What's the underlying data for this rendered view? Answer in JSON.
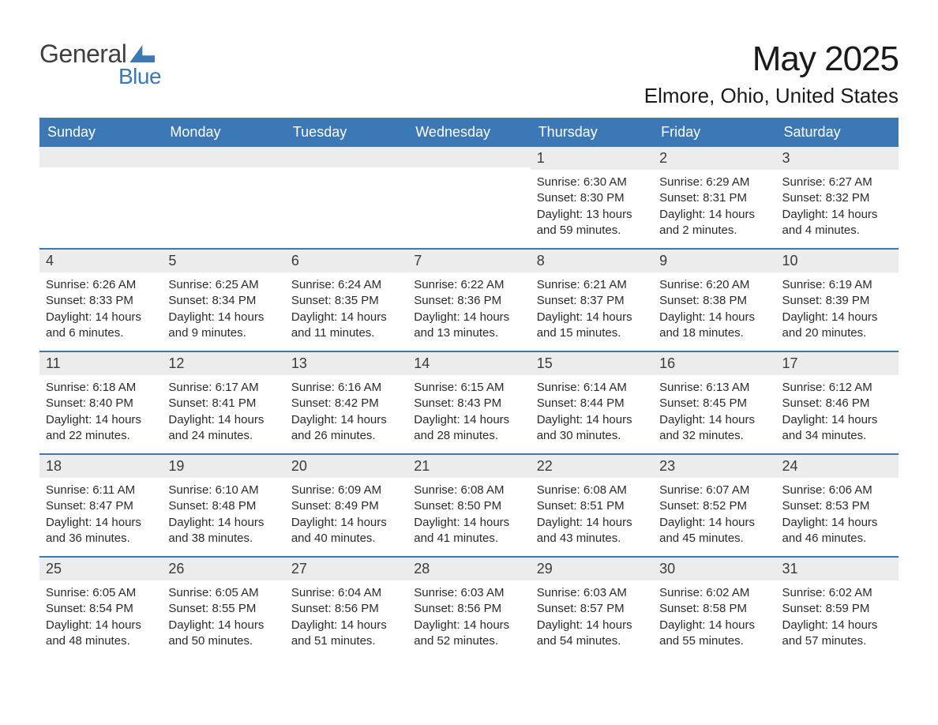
{
  "brand": {
    "part1": "General",
    "part2": "Blue",
    "text_color": "#404040",
    "accent_color": "#3b78b5"
  },
  "title": {
    "month": "May 2025",
    "location": "Elmore, Ohio, United States"
  },
  "colors": {
    "header_bg": "#3b78b5",
    "header_text": "#ffffff",
    "daynum_bg": "#ececec",
    "week_divider": "#3b78b5",
    "body_text": "#2a2a2a",
    "page_bg": "#ffffff"
  },
  "fonts": {
    "title_size": 44,
    "location_size": 26,
    "weekday_size": 18,
    "daynum_size": 18,
    "body_size": 15
  },
  "weekdays": [
    "Sunday",
    "Monday",
    "Tuesday",
    "Wednesday",
    "Thursday",
    "Friday",
    "Saturday"
  ],
  "weeks": [
    [
      {
        "empty": true
      },
      {
        "empty": true
      },
      {
        "empty": true
      },
      {
        "empty": true
      },
      {
        "n": "1",
        "sunrise": "6:30 AM",
        "sunset": "8:30 PM",
        "daylight": "13 hours and 59 minutes."
      },
      {
        "n": "2",
        "sunrise": "6:29 AM",
        "sunset": "8:31 PM",
        "daylight": "14 hours and 2 minutes."
      },
      {
        "n": "3",
        "sunrise": "6:27 AM",
        "sunset": "8:32 PM",
        "daylight": "14 hours and 4 minutes."
      }
    ],
    [
      {
        "n": "4",
        "sunrise": "6:26 AM",
        "sunset": "8:33 PM",
        "daylight": "14 hours and 6 minutes."
      },
      {
        "n": "5",
        "sunrise": "6:25 AM",
        "sunset": "8:34 PM",
        "daylight": "14 hours and 9 minutes."
      },
      {
        "n": "6",
        "sunrise": "6:24 AM",
        "sunset": "8:35 PM",
        "daylight": "14 hours and 11 minutes."
      },
      {
        "n": "7",
        "sunrise": "6:22 AM",
        "sunset": "8:36 PM",
        "daylight": "14 hours and 13 minutes."
      },
      {
        "n": "8",
        "sunrise": "6:21 AM",
        "sunset": "8:37 PM",
        "daylight": "14 hours and 15 minutes."
      },
      {
        "n": "9",
        "sunrise": "6:20 AM",
        "sunset": "8:38 PM",
        "daylight": "14 hours and 18 minutes."
      },
      {
        "n": "10",
        "sunrise": "6:19 AM",
        "sunset": "8:39 PM",
        "daylight": "14 hours and 20 minutes."
      }
    ],
    [
      {
        "n": "11",
        "sunrise": "6:18 AM",
        "sunset": "8:40 PM",
        "daylight": "14 hours and 22 minutes."
      },
      {
        "n": "12",
        "sunrise": "6:17 AM",
        "sunset": "8:41 PM",
        "daylight": "14 hours and 24 minutes."
      },
      {
        "n": "13",
        "sunrise": "6:16 AM",
        "sunset": "8:42 PM",
        "daylight": "14 hours and 26 minutes."
      },
      {
        "n": "14",
        "sunrise": "6:15 AM",
        "sunset": "8:43 PM",
        "daylight": "14 hours and 28 minutes."
      },
      {
        "n": "15",
        "sunrise": "6:14 AM",
        "sunset": "8:44 PM",
        "daylight": "14 hours and 30 minutes."
      },
      {
        "n": "16",
        "sunrise": "6:13 AM",
        "sunset": "8:45 PM",
        "daylight": "14 hours and 32 minutes."
      },
      {
        "n": "17",
        "sunrise": "6:12 AM",
        "sunset": "8:46 PM",
        "daylight": "14 hours and 34 minutes."
      }
    ],
    [
      {
        "n": "18",
        "sunrise": "6:11 AM",
        "sunset": "8:47 PM",
        "daylight": "14 hours and 36 minutes."
      },
      {
        "n": "19",
        "sunrise": "6:10 AM",
        "sunset": "8:48 PM",
        "daylight": "14 hours and 38 minutes."
      },
      {
        "n": "20",
        "sunrise": "6:09 AM",
        "sunset": "8:49 PM",
        "daylight": "14 hours and 40 minutes."
      },
      {
        "n": "21",
        "sunrise": "6:08 AM",
        "sunset": "8:50 PM",
        "daylight": "14 hours and 41 minutes."
      },
      {
        "n": "22",
        "sunrise": "6:08 AM",
        "sunset": "8:51 PM",
        "daylight": "14 hours and 43 minutes."
      },
      {
        "n": "23",
        "sunrise": "6:07 AM",
        "sunset": "8:52 PM",
        "daylight": "14 hours and 45 minutes."
      },
      {
        "n": "24",
        "sunrise": "6:06 AM",
        "sunset": "8:53 PM",
        "daylight": "14 hours and 46 minutes."
      }
    ],
    [
      {
        "n": "25",
        "sunrise": "6:05 AM",
        "sunset": "8:54 PM",
        "daylight": "14 hours and 48 minutes."
      },
      {
        "n": "26",
        "sunrise": "6:05 AM",
        "sunset": "8:55 PM",
        "daylight": "14 hours and 50 minutes."
      },
      {
        "n": "27",
        "sunrise": "6:04 AM",
        "sunset": "8:56 PM",
        "daylight": "14 hours and 51 minutes."
      },
      {
        "n": "28",
        "sunrise": "6:03 AM",
        "sunset": "8:56 PM",
        "daylight": "14 hours and 52 minutes."
      },
      {
        "n": "29",
        "sunrise": "6:03 AM",
        "sunset": "8:57 PM",
        "daylight": "14 hours and 54 minutes."
      },
      {
        "n": "30",
        "sunrise": "6:02 AM",
        "sunset": "8:58 PM",
        "daylight": "14 hours and 55 minutes."
      },
      {
        "n": "31",
        "sunrise": "6:02 AM",
        "sunset": "8:59 PM",
        "daylight": "14 hours and 57 minutes."
      }
    ]
  ],
  "labels": {
    "sunrise": "Sunrise: ",
    "sunset": "Sunset: ",
    "daylight": "Daylight: "
  }
}
